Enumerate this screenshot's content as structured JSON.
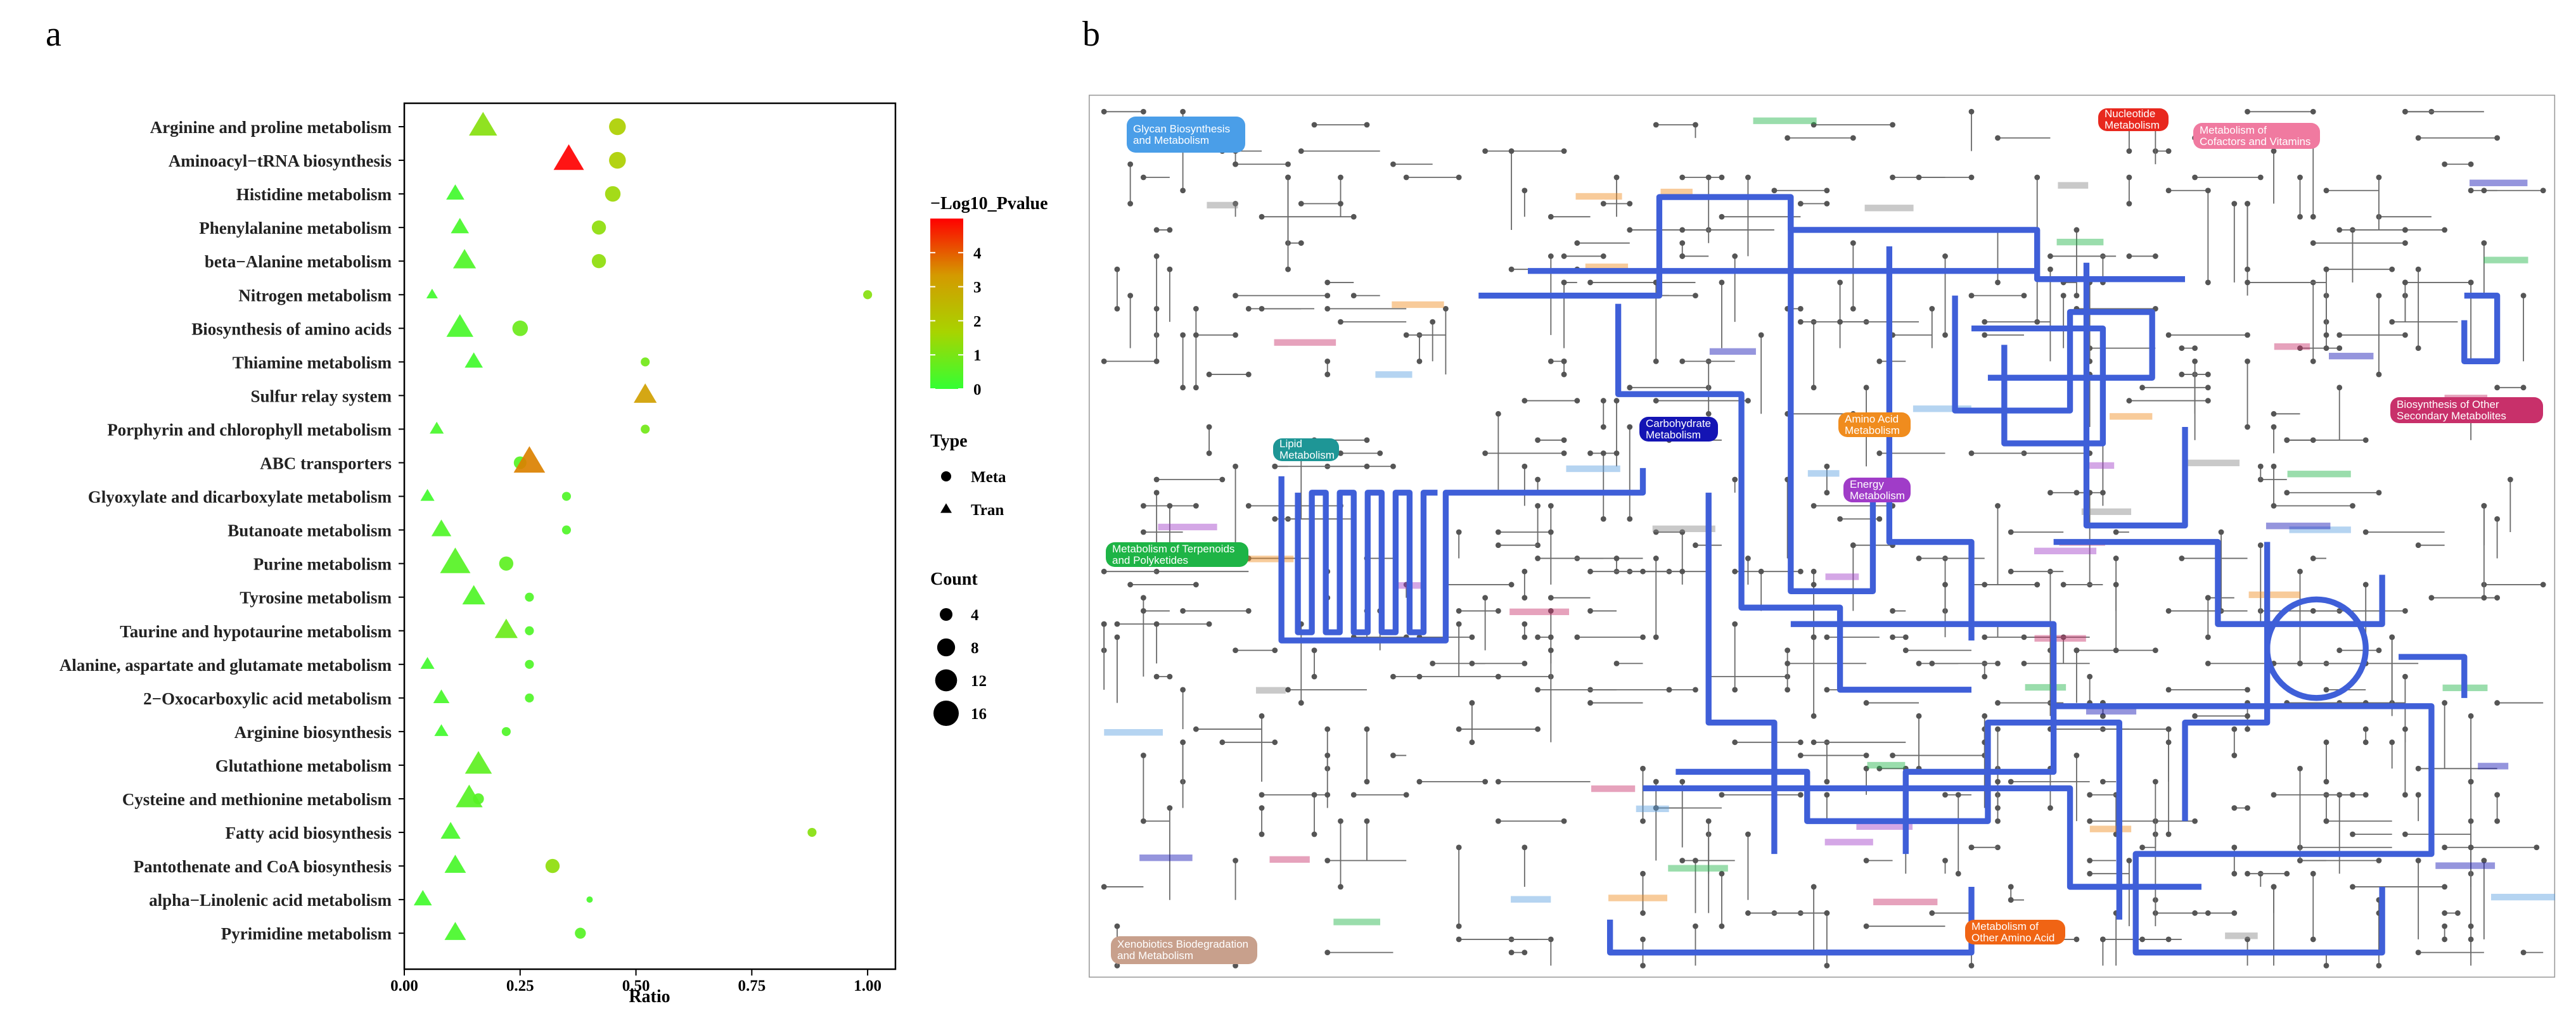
{
  "figure": {
    "panel_a": "a",
    "panel_b": "b"
  },
  "chart_data": {
    "type": "scatter",
    "categories": [
      "Arginine and proline metabolism",
      "Aminoacyl−tRNA biosynthesis",
      "Histidine metabolism",
      "Phenylalanine metabolism",
      "beta−Alanine metabolism",
      "Nitrogen metabolism",
      "Biosynthesis of amino acids",
      "Thiamine metabolism",
      "Sulfur relay system",
      "Porphyrin and chlorophyll metabolism",
      "ABC transporters",
      "Glyoxylate and dicarboxylate metabolism",
      "Butanoate metabolism",
      "Purine metabolism",
      "Tyrosine metabolism",
      "Taurine and hypotaurine metabolism",
      "Alanine, aspartate and glutamate metabolism",
      "2−Oxocarboxylic acid metabolism",
      "Arginine biosynthesis",
      "Glutathione metabolism",
      "Cysteine and methionine metabolism",
      "Fatty acid biosynthesis",
      "Pantothenate and CoA biosynthesis",
      "alpha−Linolenic acid metabolism",
      "Pyrimidine metabolism"
    ],
    "series": [
      {
        "name": "Meta",
        "shape": "circle",
        "values": [
          0.46,
          0.46,
          0.45,
          0.42,
          0.42,
          1.0,
          0.25,
          0.52,
          null,
          0.52,
          0.25,
          0.35,
          0.35,
          0.22,
          0.27,
          0.27,
          0.27,
          0.27,
          0.22,
          null,
          0.16,
          0.88,
          0.32,
          0.4,
          0.38
        ],
        "pvalue": [
          1.8,
          1.8,
          1.5,
          1.3,
          1.3,
          1.2,
          0.8,
          0.9,
          null,
          0.9,
          0.5,
          0.4,
          0.4,
          0.6,
          0.4,
          0.4,
          0.4,
          0.4,
          0.4,
          null,
          0.5,
          1.2,
          1.3,
          0.3,
          0.5
        ],
        "count": [
          7,
          7,
          6,
          5,
          5,
          2,
          6,
          2,
          null,
          2,
          4,
          2,
          2,
          5,
          2,
          2,
          2,
          2,
          2,
          null,
          3,
          2,
          5,
          1,
          3
        ]
      },
      {
        "name": "Tran",
        "shape": "triangle",
        "values": [
          0.17,
          0.355,
          0.11,
          0.12,
          0.13,
          0.06,
          0.12,
          0.15,
          0.52,
          0.07,
          0.27,
          0.05,
          0.08,
          0.11,
          0.15,
          0.22,
          0.05,
          0.08,
          0.08,
          0.16,
          0.14,
          0.1,
          0.11,
          0.04,
          0.11
        ],
        "pvalue": [
          1.2,
          5,
          0.2,
          0.3,
          0.4,
          0.2,
          0.3,
          0.2,
          3.2,
          0.3,
          3.6,
          0.2,
          0.4,
          0.5,
          0.4,
          0.8,
          0.2,
          0.3,
          0.2,
          0.6,
          0.5,
          0.3,
          0.3,
          0.2,
          0.3
        ],
        "count": [
          12,
          14,
          5,
          5,
          8,
          2,
          11,
          5,
          8,
          3,
          15,
          3,
          6,
          14,
          8,
          8,
          3,
          4,
          3,
          11,
          11,
          6,
          7,
          5,
          7
        ]
      }
    ],
    "xlabel": "Ratio",
    "xlim": [
      0,
      1.06
    ],
    "xticks": [
      {
        "value": 0,
        "label": "0.00"
      },
      0.25,
      {
        "value": 0.5,
        "label": "0.50"
      },
      0.75,
      {
        "value": 1,
        "label": "1.00"
      }
    ],
    "color_title": "−Log10_Pvalue",
    "clim": [
      0,
      5
    ],
    "cticks": [
      0,
      1,
      2,
      3,
      4
    ],
    "colors": [
      "#33ff33",
      "#a8d400",
      "#d49a00",
      "#ff0000"
    ],
    "shape_title": "Type",
    "size_title": "Count",
    "size_ticks": [
      4,
      8,
      12,
      16
    ]
  },
  "map": {
    "nodes": [
      {
        "label": "Glycan Biosynthesis and Metabolism",
        "color": "#4a9ee8"
      },
      {
        "label": "Nucleotide Metabolism",
        "color": "#e8281e"
      },
      {
        "label": "Metabolism of Cofactors and Vitamins",
        "color": "#f07aa0"
      },
      {
        "label": "Biosynthesis of Other Secondary Metabolites",
        "color": "#c8306a"
      },
      {
        "label": "Carbohydrate Metabolism",
        "color": "#1414b4"
      },
      {
        "label": "Amino Acid Metabolism",
        "color": "#f08c1e"
      },
      {
        "label": "Lipid Metabolism",
        "color": "#1e9696"
      },
      {
        "label": "Energy Metabolism",
        "color": "#a03cc8"
      },
      {
        "label": "Metabolism of Terpenoids and Polyketides",
        "color": "#1eb446"
      },
      {
        "label": "Xenobiotics Biodegradation and Metabolism",
        "color": "#c8a08c"
      },
      {
        "label": "Metabolism of Other Amino Acid",
        "color": "#f06414"
      }
    ]
  }
}
